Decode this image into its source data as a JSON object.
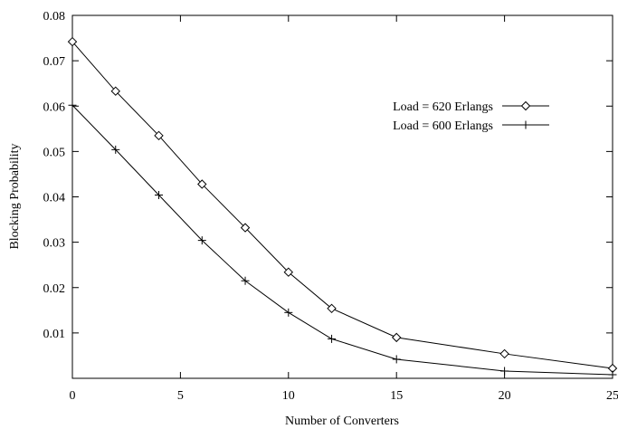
{
  "chart_data": {
    "type": "line",
    "xlabel": "Number of Converters",
    "ylabel": "Blocking Probability",
    "xlim": [
      0,
      25
    ],
    "ylim": [
      0,
      0.08
    ],
    "xticks": [
      0,
      5,
      10,
      15,
      20,
      25
    ],
    "xtick_labels": [
      "0",
      "5",
      "10",
      "15",
      "20",
      "25"
    ],
    "yticks": [
      0.01,
      0.02,
      0.03,
      0.04,
      0.05,
      0.06,
      0.07,
      0.08
    ],
    "ytick_labels": [
      "0.01",
      "0.02",
      "0.03",
      "0.04",
      "0.05",
      "0.06",
      "0.07",
      "0.08"
    ],
    "grid": false,
    "legend_position": "upper-right",
    "series": [
      {
        "name": "Load = 620 Erlangs",
        "marker": "diamond",
        "x": [
          0,
          2,
          4,
          6,
          8,
          10,
          12,
          15,
          20,
          25
        ],
        "y": [
          0.0742,
          0.0633,
          0.0535,
          0.0428,
          0.0332,
          0.0234,
          0.0154,
          0.009,
          0.0054,
          0.0022
        ]
      },
      {
        "name": "Load = 600 Erlangs",
        "marker": "plus",
        "x": [
          0,
          2,
          4,
          6,
          8,
          10,
          12,
          15,
          20,
          25
        ],
        "y": [
          0.0602,
          0.0504,
          0.0404,
          0.0304,
          0.0215,
          0.0145,
          0.0087,
          0.0042,
          0.0016,
          0.0008
        ]
      }
    ]
  }
}
